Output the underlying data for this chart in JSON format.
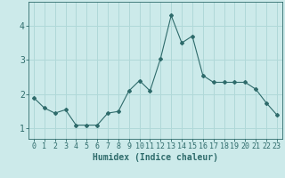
{
  "x": [
    0,
    1,
    2,
    3,
    4,
    5,
    6,
    7,
    8,
    9,
    10,
    11,
    12,
    13,
    14,
    15,
    16,
    17,
    18,
    19,
    20,
    21,
    22,
    23
  ],
  "y": [
    1.9,
    1.6,
    1.45,
    1.55,
    1.1,
    1.1,
    1.1,
    1.45,
    1.5,
    2.1,
    2.4,
    2.1,
    3.05,
    4.3,
    3.5,
    3.7,
    2.55,
    2.35,
    2.35,
    2.35,
    2.35,
    2.15,
    1.75,
    1.4
  ],
  "line_color": "#2e6b6b",
  "marker": "D",
  "marker_size": 2,
  "bg_color": "#cceaea",
  "grid_color": "#b0d8d8",
  "xlabel": "Humidex (Indice chaleur)",
  "xlabel_fontsize": 7,
  "tick_color": "#2e6b6b",
  "tick_fontsize": 6,
  "ylim": [
    0.7,
    4.7
  ],
  "yticks": [
    1,
    2,
    3,
    4
  ],
  "xticks": [
    0,
    1,
    2,
    3,
    4,
    5,
    6,
    7,
    8,
    9,
    10,
    11,
    12,
    13,
    14,
    15,
    16,
    17,
    18,
    19,
    20,
    21,
    22,
    23
  ]
}
